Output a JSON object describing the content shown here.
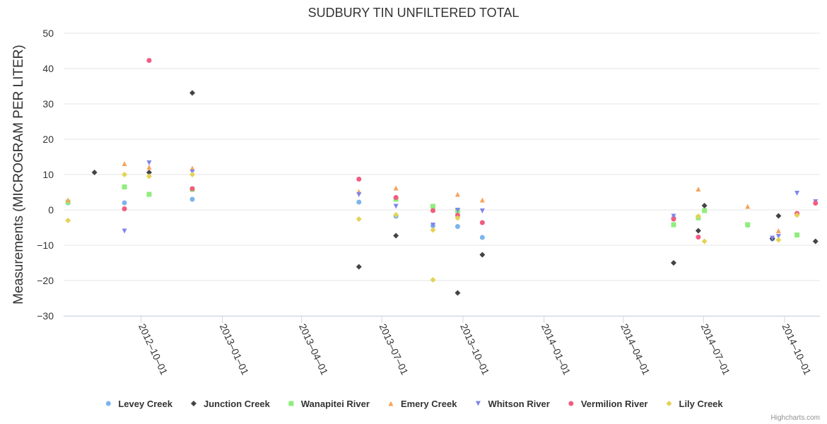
{
  "chart_data": {
    "type": "scatter",
    "title": "SUDBURY TIN UNFILTERED TOTAL",
    "ylabel": "Measurements (MICROGRAM PER LITER)",
    "xlabel": "",
    "ylim": [
      -30,
      50
    ],
    "yticks": [
      50,
      40,
      30,
      20,
      10,
      0,
      -10,
      -20,
      -30
    ],
    "ytick_labels": [
      "50",
      "40",
      "30",
      "20",
      "10",
      "0",
      "−10",
      "−20",
      "−30"
    ],
    "xlim": [
      "2012-07-05",
      "2014-11-10"
    ],
    "xticks": [
      "2012-10-01",
      "2013-01-01",
      "2013-04-01",
      "2013-07-01",
      "2013-10-01",
      "2014-01-01",
      "2014-04-01",
      "2014-07-01",
      "2014-10-01"
    ],
    "xtick_labels": [
      "2012–10–01",
      "2013–01–01",
      "2013–04–01",
      "2013–07–01",
      "2013–10–01",
      "2014–01–01",
      "2014–04–01",
      "2014–07–01",
      "2014–10–01"
    ],
    "grid": true,
    "legend_position": "bottom",
    "credits": "Highcharts.com",
    "series": [
      {
        "name": "Levey Creek",
        "color": "#7cb5ec",
        "marker": "circle",
        "points": [
          [
            "2012-07-10",
            2.0
          ],
          [
            "2012-09-12",
            2.0
          ],
          [
            "2012-11-28",
            3.0
          ],
          [
            "2013-06-05",
            2.2
          ],
          [
            "2013-07-17",
            -1.8
          ],
          [
            "2013-08-28",
            -4.5
          ],
          [
            "2013-09-25",
            -4.7
          ],
          [
            "2013-10-23",
            -7.8
          ],
          [
            "2014-05-28",
            -2.3
          ],
          [
            "2014-06-25",
            -2.3
          ],
          [
            "2014-08-20",
            -4.3
          ],
          [
            "2014-09-17",
            -8.2
          ],
          [
            "2014-10-15",
            -1.2
          ]
        ]
      },
      {
        "name": "Junction Creek",
        "color": "#434348",
        "marker": "diamond",
        "points": [
          [
            "2012-08-09",
            10.6
          ],
          [
            "2012-10-10",
            10.6
          ],
          [
            "2012-11-28",
            33.1
          ],
          [
            "2013-06-05",
            -16.1
          ],
          [
            "2013-07-17",
            -7.3
          ],
          [
            "2013-09-25",
            -23.5
          ],
          [
            "2013-10-23",
            -12.7
          ],
          [
            "2014-05-28",
            -15.0
          ],
          [
            "2014-06-25",
            -5.9
          ],
          [
            "2014-07-02",
            1.2
          ],
          [
            "2014-09-17",
            -8.1
          ],
          [
            "2014-09-24",
            -1.7
          ],
          [
            "2014-11-05",
            -8.9
          ]
        ]
      },
      {
        "name": "Wanapitei River",
        "color": "#90ed7d",
        "marker": "square",
        "points": [
          [
            "2012-07-10",
            2.2
          ],
          [
            "2012-09-12",
            6.5
          ],
          [
            "2012-10-10",
            4.4
          ],
          [
            "2012-11-28",
            5.8
          ],
          [
            "2013-07-17",
            3.0
          ],
          [
            "2013-08-28",
            1.0
          ],
          [
            "2013-09-25",
            -0.2
          ],
          [
            "2014-05-28",
            -4.2
          ],
          [
            "2014-06-25",
            -2.2
          ],
          [
            "2014-07-02",
            -0.2
          ],
          [
            "2014-08-20",
            -4.2
          ],
          [
            "2014-10-15",
            -7.1
          ]
        ]
      },
      {
        "name": "Emery Creek",
        "color": "#f7a35c",
        "marker": "triangle",
        "points": [
          [
            "2012-07-10",
            2.8
          ],
          [
            "2012-09-12",
            13.1
          ],
          [
            "2012-10-10",
            12.1
          ],
          [
            "2012-11-28",
            11.8
          ],
          [
            "2013-06-05",
            5.2
          ],
          [
            "2013-07-17",
            6.2
          ],
          [
            "2013-09-25",
            4.4
          ],
          [
            "2013-10-23",
            2.8
          ],
          [
            "2014-06-25",
            5.9
          ],
          [
            "2014-08-20",
            1.0
          ],
          [
            "2014-09-24",
            -5.9
          ]
        ]
      },
      {
        "name": "Whitson River",
        "color": "#8085e9",
        "marker": "triangle-down",
        "points": [
          [
            "2012-09-12",
            -6.0
          ],
          [
            "2012-10-10",
            13.3
          ],
          [
            "2012-11-28",
            10.7
          ],
          [
            "2013-06-05",
            4.3
          ],
          [
            "2013-07-17",
            1.0
          ],
          [
            "2013-08-28",
            -4.3
          ],
          [
            "2013-09-25",
            -0.1
          ],
          [
            "2013-10-23",
            -0.3
          ],
          [
            "2014-05-28",
            -1.8
          ],
          [
            "2014-09-17",
            -8.0
          ],
          [
            "2014-09-24",
            -7.5
          ],
          [
            "2014-10-15",
            4.7
          ],
          [
            "2014-11-05",
            2.3
          ]
        ]
      },
      {
        "name": "Vermilion River",
        "color": "#f15c80",
        "marker": "circle",
        "points": [
          [
            "2012-09-12",
            0.3
          ],
          [
            "2012-10-10",
            42.3
          ],
          [
            "2012-11-28",
            6.0
          ],
          [
            "2013-06-05",
            8.7
          ],
          [
            "2013-07-17",
            3.5
          ],
          [
            "2013-08-28",
            -0.2
          ],
          [
            "2013-09-25",
            -1.5
          ],
          [
            "2013-10-23",
            -3.6
          ],
          [
            "2014-05-28",
            -2.6
          ],
          [
            "2014-06-25",
            -7.7
          ],
          [
            "2014-10-15",
            -1.0
          ],
          [
            "2014-11-05",
            1.9
          ]
        ]
      },
      {
        "name": "Lily Creek",
        "color": "#e4d354",
        "marker": "diamond",
        "points": [
          [
            "2012-07-10",
            -3.0
          ],
          [
            "2012-09-12",
            10.0
          ],
          [
            "2012-10-10",
            9.5
          ],
          [
            "2012-11-28",
            10.0
          ],
          [
            "2013-06-05",
            -2.6
          ],
          [
            "2013-07-17",
            -1.4
          ],
          [
            "2013-08-28",
            -19.8
          ],
          [
            "2013-08-28",
            -5.7
          ],
          [
            "2013-09-25",
            -2.3
          ],
          [
            "2014-06-25",
            -1.8
          ],
          [
            "2014-07-02",
            -8.9
          ],
          [
            "2014-09-24",
            -8.5
          ],
          [
            "2014-10-15",
            -1.5
          ]
        ]
      }
    ]
  }
}
